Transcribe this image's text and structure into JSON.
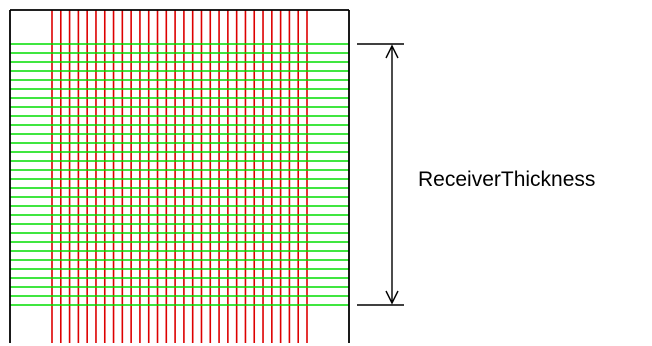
{
  "diagram": {
    "dimension_label": "ReceiverThickness"
  },
  "colors": {
    "vertical_lines": "#dd0000",
    "horizontal_lines": "#00dd00",
    "outline": "#000000",
    "dimension": "#000000"
  }
}
